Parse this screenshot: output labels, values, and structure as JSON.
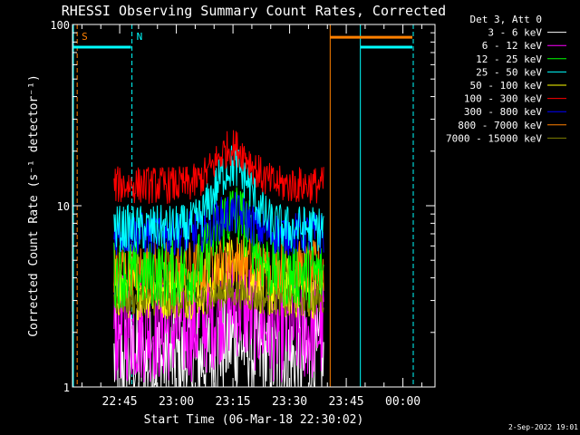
{
  "chart_data": {
    "type": "line",
    "title": "RHESSI Observing Summary Count Rates, Corrected",
    "xlabel": "Start Time (06-Mar-18 22:30:02)",
    "ylabel": "Corrected Count Rate (s⁻¹ detector⁻¹)",
    "yscale": "log",
    "ylim": [
      1,
      100
    ],
    "y_ticks": [
      {
        "value": 1,
        "label": "1"
      },
      {
        "value": 10,
        "label": "10"
      },
      {
        "value": 100,
        "label": "100"
      }
    ],
    "xlim_minutes": [
      0,
      96
    ],
    "x_ticks": [
      {
        "minutes": 12.5,
        "label": "22:45"
      },
      {
        "minutes": 27.5,
        "label": "23:00"
      },
      {
        "minutes": 42.5,
        "label": "23:15"
      },
      {
        "minutes": 57.5,
        "label": "23:30"
      },
      {
        "minutes": 72.5,
        "label": "23:45"
      },
      {
        "minutes": 87.5,
        "label": "00:00"
      }
    ],
    "grid": false,
    "legend_position": "top-right",
    "legend_header": "Det 3, Att 0",
    "data_span_minutes": [
      11,
      66.5
    ],
    "peak_time_minutes": 42.5,
    "series": [
      {
        "name": "3 - 6 keV",
        "color": "#ffffff",
        "base": 1.4,
        "peak": 1.8,
        "noise": 0.35
      },
      {
        "name": "6 - 12 keV",
        "color": "#ff00ff",
        "base": 2.1,
        "peak": 2.9,
        "noise": 0.35
      },
      {
        "name": "12 - 25 keV",
        "color": "#00ff00",
        "base": 4.2,
        "peak": 9.0,
        "noise": 0.22
      },
      {
        "name": "25 - 50 keV",
        "color": "#00ffff",
        "base": 7.5,
        "peak": 16.5,
        "noise": 0.15
      },
      {
        "name": "50 - 100 keV",
        "color": "#ffff00",
        "base": 3.5,
        "peak": 4.5,
        "noise": 0.2
      },
      {
        "name": "100 - 300 keV",
        "color": "#ff0000",
        "base": 13.0,
        "peak": 21.0,
        "noise": 0.12
      },
      {
        "name": "300 - 800 keV",
        "color": "#0000ff",
        "base": 7.0,
        "peak": 9.0,
        "noise": 0.14
      },
      {
        "name": "800 - 7000 keV",
        "color": "#ff8000",
        "base": 4.5,
        "peak": 5.0,
        "noise": 0.18
      },
      {
        "name": "7000 - 15000 keV",
        "color": "#808000",
        "base": 3.0,
        "peak": 3.3,
        "noise": 0.1
      }
    ],
    "annotations": [
      {
        "label": "S",
        "color": "#ff8000",
        "x_minutes": 1
      },
      {
        "label": "N",
        "color": "#00ffff",
        "x_minutes": 15.5
      }
    ],
    "flag_lines": [
      {
        "color": "#00ffff",
        "style": "solid",
        "x_minutes": 0
      },
      {
        "color": "#ff8000",
        "style": "dashed",
        "x_minutes": 1
      },
      {
        "color": "#00ffff",
        "style": "dashed",
        "x_minutes": 15.5
      },
      {
        "color": "#ff8000",
        "style": "solid",
        "x_minutes": 68
      },
      {
        "color": "#00ffff",
        "style": "solid",
        "x_minutes": 76
      },
      {
        "color": "#ff8000",
        "style": "dashed",
        "x_minutes": 90
      },
      {
        "color": "#00ffff",
        "style": "dashed",
        "x_minutes": 90
      }
    ],
    "flag_bars": [
      {
        "color": "#00ffff",
        "from_minutes": 0,
        "to_minutes": 15.5,
        "level": 75
      },
      {
        "color": "#ff8000",
        "from_minutes": 68,
        "to_minutes": 90,
        "level": 85
      },
      {
        "color": "#00ffff",
        "from_minutes": 76,
        "to_minutes": 90,
        "level": 75
      }
    ]
  },
  "footer": {
    "timestamp": "2-Sep-2022 19:01"
  }
}
